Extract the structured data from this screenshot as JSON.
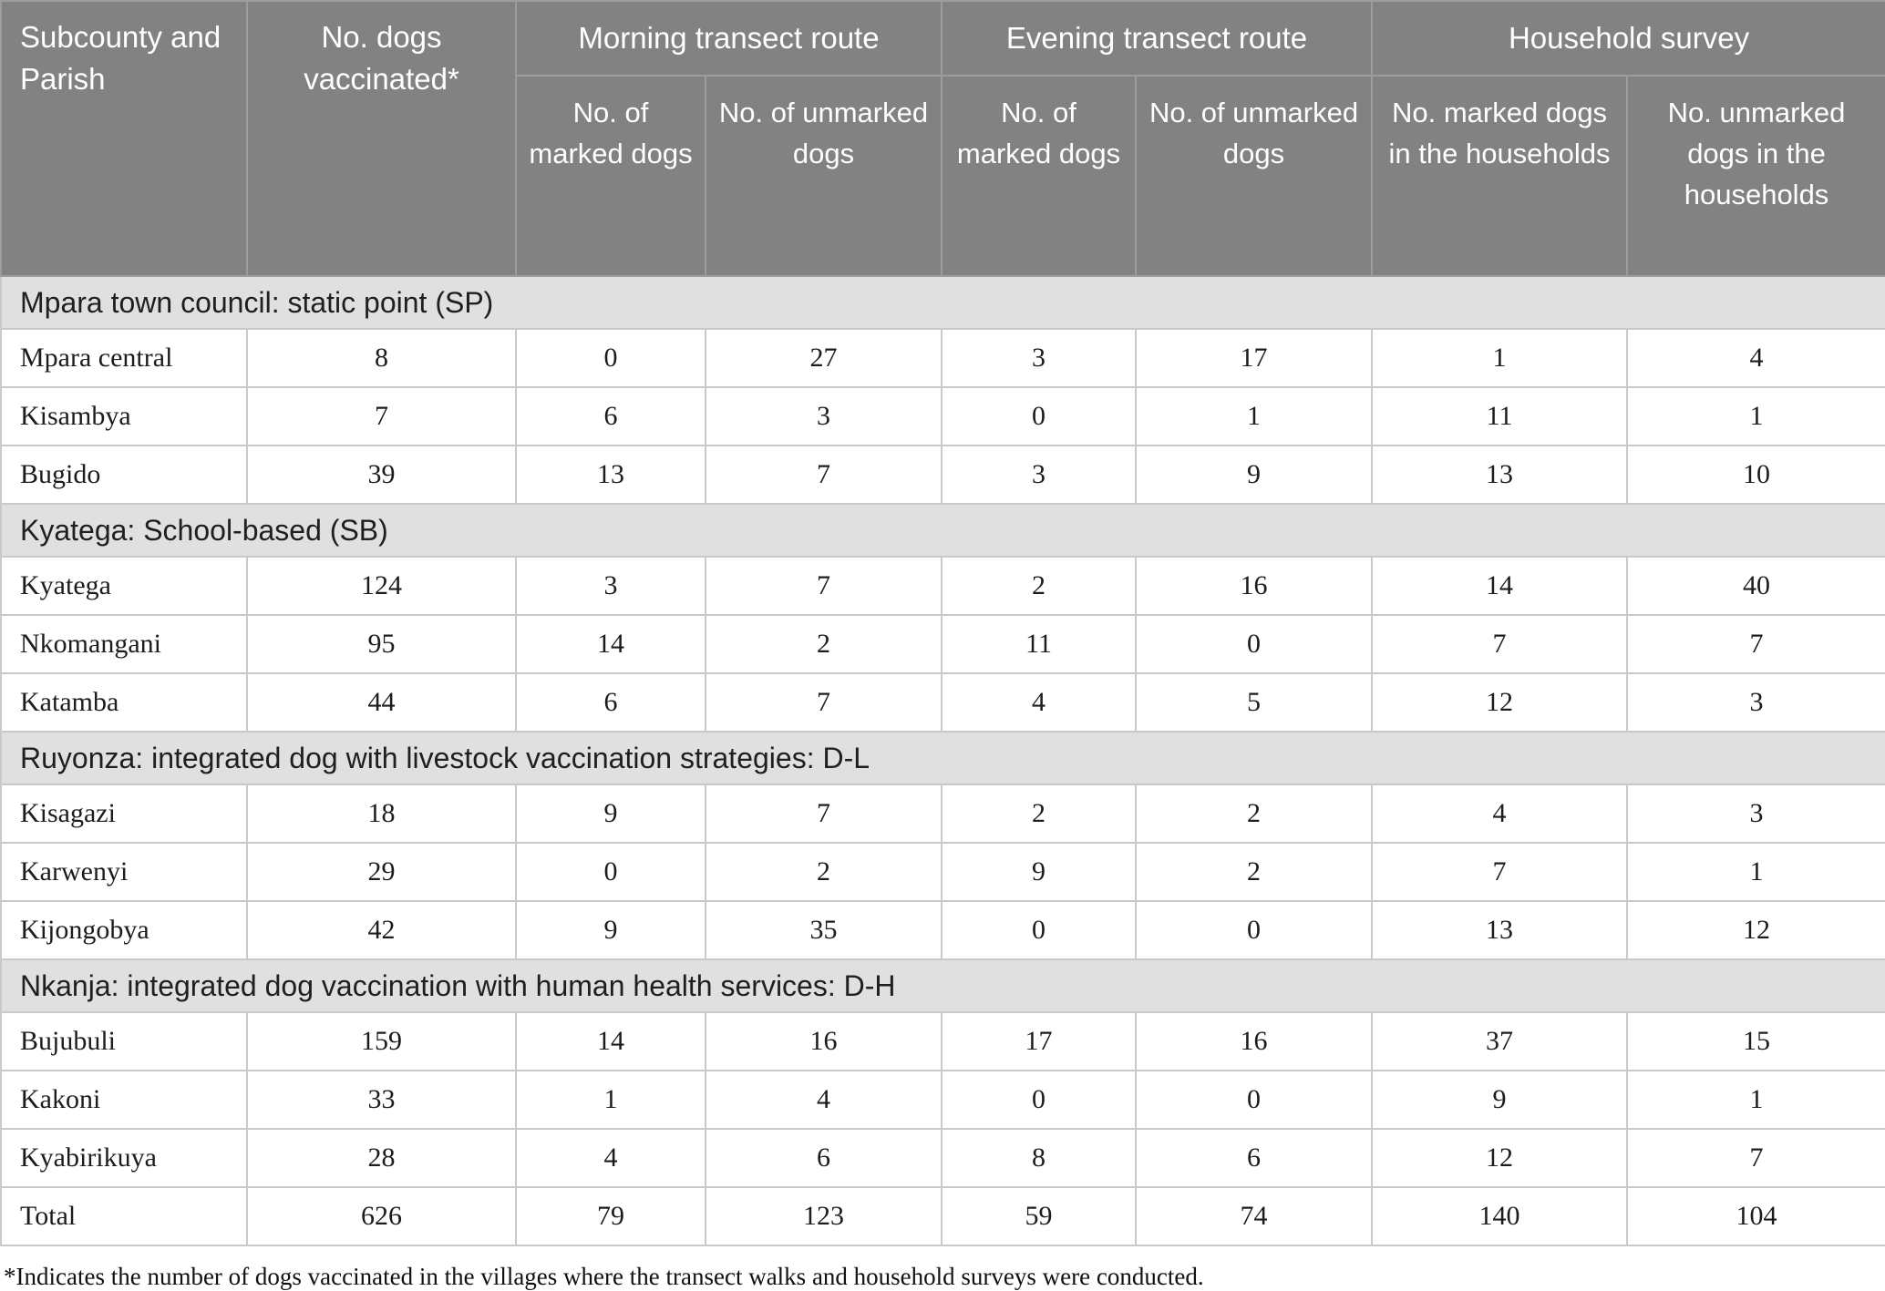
{
  "table": {
    "header": {
      "subcounty_parish": "Subcounty and Parish",
      "dogs_vaccinated": "No. dogs vaccinated*",
      "groups": [
        {
          "label": "Morning transect route",
          "children": [
            "No. of marked dogs",
            "No. of unmarked dogs"
          ]
        },
        {
          "label": "Evening transect route",
          "children": [
            "No. of marked dogs",
            "No. of unmarked dogs"
          ]
        },
        {
          "label": "Household survey",
          "children": [
            "No. marked dogs in the households",
            "No. unmarked dogs in the households"
          ]
        }
      ]
    },
    "sections": [
      {
        "title": "Mpara town council: static point (SP)",
        "rows": [
          {
            "parish": "Mpara central",
            "values": [
              8,
              0,
              27,
              3,
              17,
              1,
              4
            ]
          },
          {
            "parish": "Kisambya",
            "values": [
              7,
              6,
              3,
              0,
              1,
              11,
              1
            ]
          },
          {
            "parish": "Bugido",
            "values": [
              39,
              13,
              7,
              3,
              9,
              13,
              10
            ]
          }
        ]
      },
      {
        "title": "Kyatega: School-based (SB)",
        "rows": [
          {
            "parish": "Kyatega",
            "values": [
              124,
              3,
              7,
              2,
              16,
              14,
              40
            ]
          },
          {
            "parish": "Nkomangani",
            "values": [
              95,
              14,
              2,
              11,
              0,
              7,
              7
            ]
          },
          {
            "parish": "Katamba",
            "values": [
              44,
              6,
              7,
              4,
              5,
              12,
              3
            ]
          }
        ]
      },
      {
        "title": "Ruyonza: integrated dog with livestock vaccination strategies: D-L",
        "rows": [
          {
            "parish": "Kisagazi",
            "values": [
              18,
              9,
              7,
              2,
              2,
              4,
              3
            ]
          },
          {
            "parish": "Karwenyi",
            "values": [
              29,
              0,
              2,
              9,
              2,
              7,
              1
            ]
          },
          {
            "parish": "Kijongobya",
            "values": [
              42,
              9,
              35,
              0,
              0,
              13,
              12
            ]
          }
        ]
      },
      {
        "title": "Nkanja: integrated dog vaccination with human health services: D-H",
        "rows": [
          {
            "parish": "Bujubuli",
            "values": [
              159,
              14,
              16,
              17,
              16,
              37,
              15
            ]
          },
          {
            "parish": "Kakoni",
            "values": [
              33,
              1,
              4,
              0,
              0,
              9,
              1
            ]
          },
          {
            "parish": "Kyabirikuya",
            "values": [
              28,
              4,
              6,
              8,
              6,
              12,
              7
            ]
          }
        ]
      }
    ],
    "total": {
      "label": "Total",
      "values": [
        626,
        79,
        123,
        59,
        74,
        140,
        104
      ]
    },
    "footnote": "*Indicates the number of dogs vaccinated in the villages where the transect walks and household surveys were conducted.",
    "colors": {
      "header_bg": "#828282",
      "header_text": "#ffffff",
      "section_bg": "#e0e0e0",
      "row_bg": "#ffffff",
      "border": "#c9c9c9",
      "body_text": "#1c1c1c"
    }
  }
}
